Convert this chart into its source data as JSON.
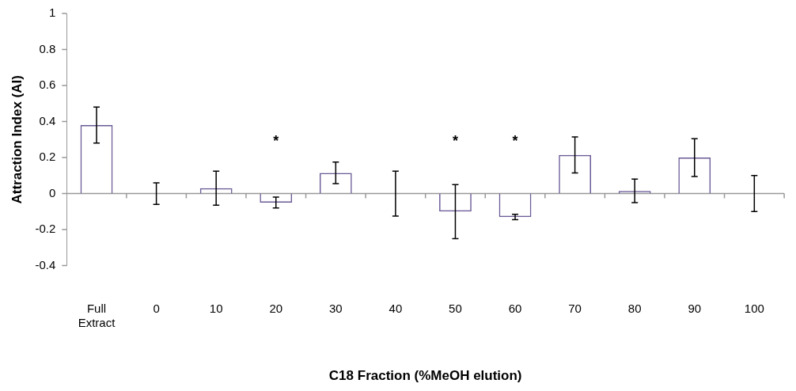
{
  "chart_data": {
    "type": "bar",
    "xlabel": "C18 Fraction (%MeOH elution)",
    "ylabel": "Attraction Index (AI)",
    "categories": [
      "Full Extract",
      "0",
      "10",
      "20",
      "30",
      "40",
      "50",
      "60",
      "70",
      "80",
      "90",
      "100"
    ],
    "values": [
      0.38,
      0,
      0.03,
      -0.05,
      0.115,
      0,
      -0.1,
      -0.13,
      0.215,
      0.015,
      0.2,
      0
    ],
    "errors": [
      0.1,
      0.06,
      0.095,
      0.03,
      0.06,
      0.125,
      0.15,
      0.015,
      0.1,
      0.065,
      0.105,
      0.1
    ],
    "color": "#6a5a96",
    "ylim": [
      -0.4,
      1
    ],
    "yticks": [
      -0.4,
      -0.2,
      0,
      0.2,
      0.4,
      0.6,
      0.8,
      1
    ],
    "legend": false,
    "annotations": [
      "*",
      "*",
      "*"
    ]
  }
}
